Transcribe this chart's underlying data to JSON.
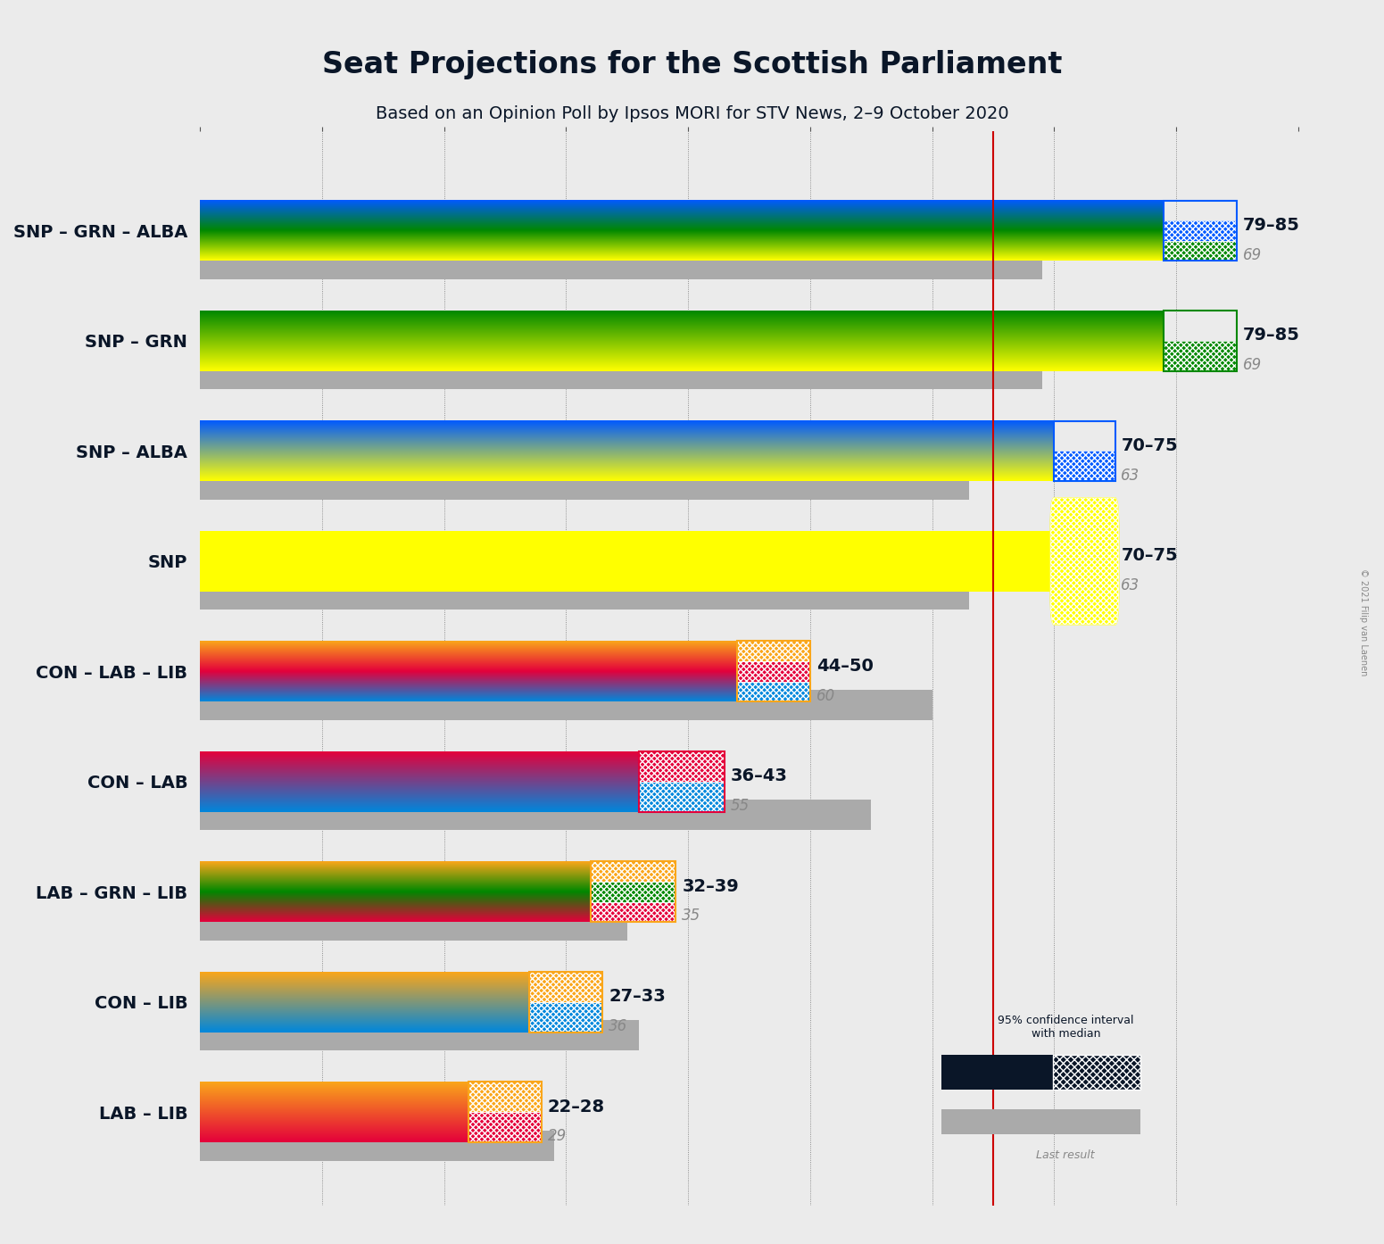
{
  "title": "Seat Projections for the Scottish Parliament",
  "subtitle": "Based on an Opinion Poll by Ipsos MORI for STV News, 2–9 October 2020",
  "copyright": "© 2021 Filip van Laenen",
  "background_color": "#ebebeb",
  "majority_line": 65,
  "x_max": 90,
  "x_ticks": [
    0,
    10,
    20,
    30,
    40,
    50,
    60,
    70,
    80,
    90
  ],
  "coalitions": [
    {
      "label": "SNP – GRN – ALBA",
      "median_bar_colors": [
        "#FFFF00",
        "#008800",
        "#005AFF"
      ],
      "ci_low": 79,
      "ci_high": 85,
      "median": 82,
      "last_result": 69,
      "range_label": "79–85",
      "hatch_colors": [
        "#008800",
        "#005AFF"
      ],
      "underline": false
    },
    {
      "label": "SNP – GRN",
      "median_bar_colors": [
        "#FFFF00",
        "#008800"
      ],
      "ci_low": 79,
      "ci_high": 85,
      "median": 82,
      "last_result": 69,
      "range_label": "79–85",
      "hatch_colors": [
        "#008800"
      ],
      "underline": false
    },
    {
      "label": "SNP – ALBA",
      "median_bar_colors": [
        "#FFFF00",
        "#005AFF"
      ],
      "ci_low": 70,
      "ci_high": 75,
      "median": 72,
      "last_result": 63,
      "range_label": "70–75",
      "hatch_colors": [
        "#005AFF"
      ],
      "underline": false
    },
    {
      "label": "SNP",
      "median_bar_colors": [
        "#FFFF00"
      ],
      "ci_low": 70,
      "ci_high": 75,
      "median": 72,
      "last_result": 63,
      "range_label": "70–75",
      "hatch_colors": [
        "#FFFF00"
      ],
      "underline": true
    },
    {
      "label": "CON – LAB – LIB",
      "median_bar_colors": [
        "#0087DC",
        "#E4003B",
        "#FAA61A"
      ],
      "ci_low": 44,
      "ci_high": 50,
      "median": 47,
      "last_result": 60,
      "range_label": "44–50",
      "hatch_colors": [
        "#0087DC",
        "#E4003B",
        "#FAA61A"
      ],
      "underline": false
    },
    {
      "label": "CON – LAB",
      "median_bar_colors": [
        "#0087DC",
        "#E4003B"
      ],
      "ci_low": 36,
      "ci_high": 43,
      "median": 39,
      "last_result": 55,
      "range_label": "36–43",
      "hatch_colors": [
        "#0087DC",
        "#E4003B"
      ],
      "underline": false
    },
    {
      "label": "LAB – GRN – LIB",
      "median_bar_colors": [
        "#E4003B",
        "#008800",
        "#FAA61A"
      ],
      "ci_low": 32,
      "ci_high": 39,
      "median": 35,
      "last_result": 35,
      "range_label": "32–39",
      "hatch_colors": [
        "#E4003B",
        "#008800",
        "#FAA61A"
      ],
      "underline": false
    },
    {
      "label": "CON – LIB",
      "median_bar_colors": [
        "#0087DC",
        "#FAA61A"
      ],
      "ci_low": 27,
      "ci_high": 33,
      "median": 30,
      "last_result": 36,
      "range_label": "27–33",
      "hatch_colors": [
        "#0087DC",
        "#FAA61A"
      ],
      "underline": false
    },
    {
      "label": "LAB – LIB",
      "median_bar_colors": [
        "#E4003B",
        "#FAA61A"
      ],
      "ci_low": 22,
      "ci_high": 28,
      "median": 25,
      "last_result": 29,
      "range_label": "22–28",
      "hatch_colors": [
        "#E4003B",
        "#FAA61A"
      ],
      "underline": false
    }
  ]
}
